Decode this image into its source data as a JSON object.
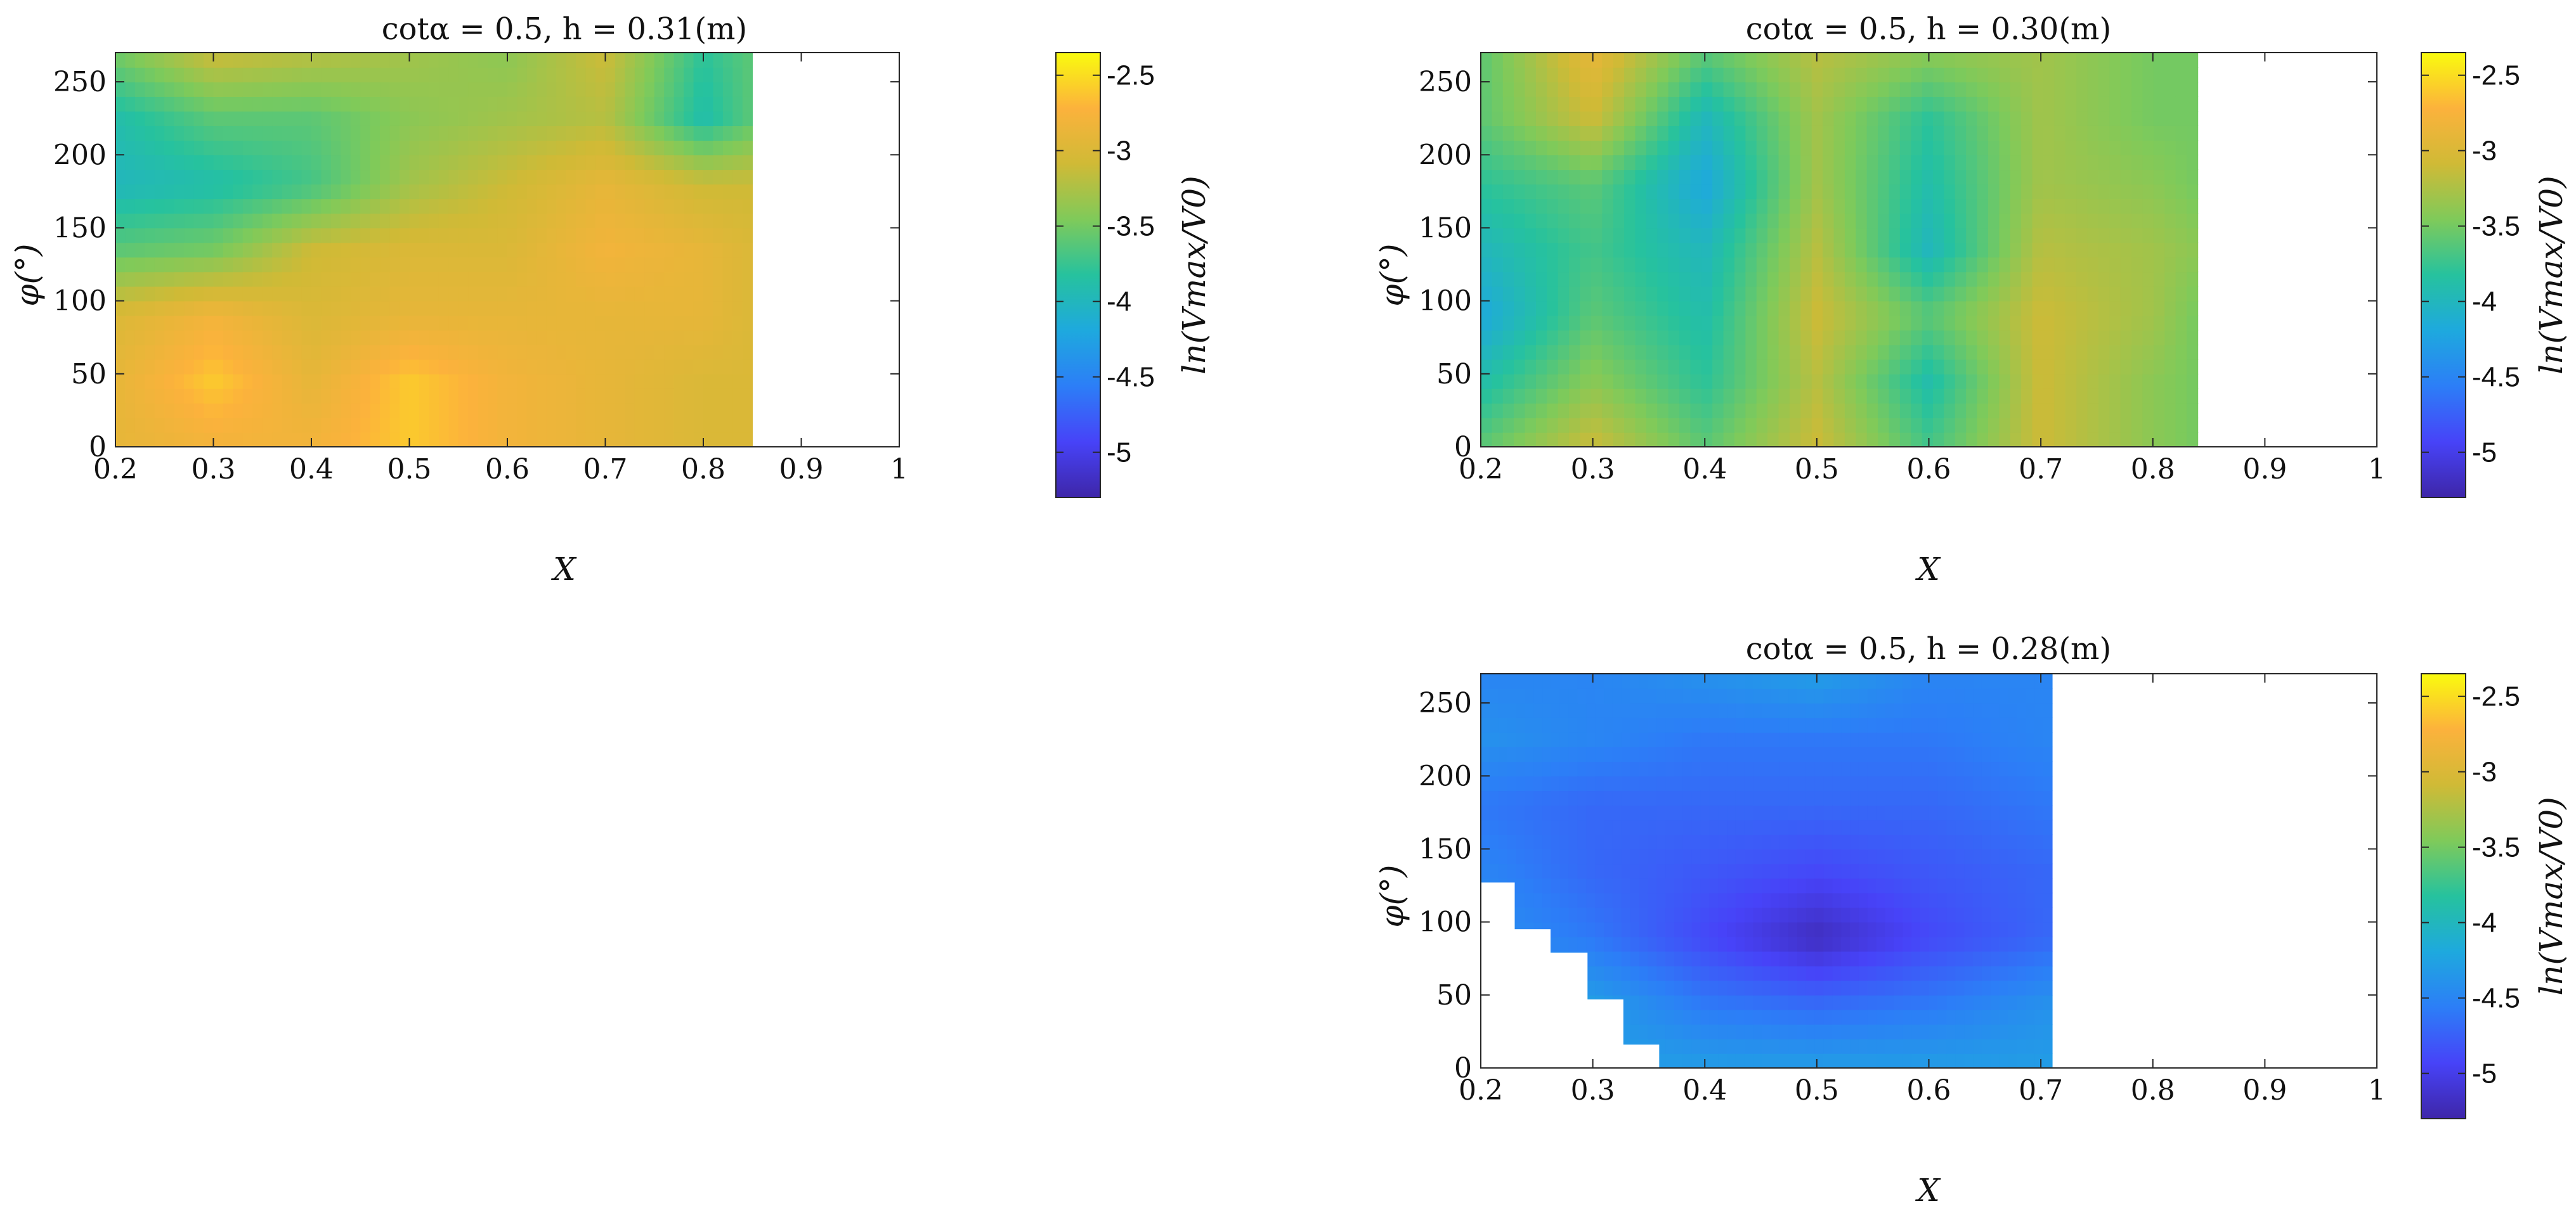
{
  "chart_data": [
    {
      "type": "heatmap",
      "title": "cotα = 0.5, h = 0.31(m)",
      "xlabel": "X",
      "ylabel": "φ(°)",
      "colorbar_label": "ln(Vmax/V0)",
      "xlim": [
        0.2,
        1
      ],
      "ylim": [
        0,
        270
      ],
      "xticks": [
        "0.2",
        "0.3",
        "0.4",
        "0.5",
        "0.6",
        "0.7",
        "0.8",
        "0.9",
        "1"
      ],
      "yticks": [
        "0",
        "50",
        "100",
        "150",
        "200",
        "250"
      ],
      "clim": [
        -5.3,
        -2.35
      ],
      "colorbar_ticks": [
        "-2.5",
        "-3",
        "-3.5",
        "-4",
        "-4.5",
        "-5"
      ],
      "data_extent_x": [
        0.2,
        0.85
      ],
      "colormap": [
        "#3e26a8",
        "#4743f8",
        "#2c7ef7",
        "#1ea9de",
        "#26c29e",
        "#7fca5a",
        "#d0ba36",
        "#fcb23c",
        "#f9fb0e"
      ],
      "grid_x": [
        0.2,
        0.3,
        0.4,
        0.5,
        0.6,
        0.7,
        0.8,
        0.85
      ],
      "grid_y": [
        0,
        45,
        90,
        135,
        180,
        225,
        270
      ],
      "grid_values": [
        [
          -2.9,
          -2.8,
          -2.8,
          -2.6,
          -2.8,
          -2.9,
          -3.0,
          -3.0
        ],
        [
          -2.9,
          -2.6,
          -2.9,
          -2.6,
          -2.8,
          -2.9,
          -3.0,
          -3.0
        ],
        [
          -3.0,
          -2.8,
          -3.0,
          -2.9,
          -2.9,
          -2.9,
          -2.9,
          -3.0
        ],
        [
          -3.6,
          -3.5,
          -3.1,
          -3.0,
          -3.0,
          -2.8,
          -2.9,
          -3.0
        ],
        [
          -4.0,
          -3.9,
          -3.7,
          -3.3,
          -3.1,
          -2.9,
          -3.1,
          -3.1
        ],
        [
          -3.9,
          -3.6,
          -3.6,
          -3.4,
          -3.3,
          -3.2,
          -3.9,
          -3.6
        ],
        [
          -3.5,
          -3.1,
          -3.2,
          -3.3,
          -3.4,
          -3.1,
          -3.8,
          -3.6
        ]
      ]
    },
    {
      "type": "heatmap",
      "title": "cotα = 0.5, h = 0.30(m)",
      "xlabel": "X",
      "ylabel": "φ(°)",
      "colorbar_label": "ln(Vmax/V0)",
      "xlim": [
        0.2,
        1
      ],
      "ylim": [
        0,
        270
      ],
      "xticks": [
        "0.2",
        "0.3",
        "0.4",
        "0.5",
        "0.6",
        "0.7",
        "0.8",
        "0.9",
        "1"
      ],
      "yticks": [
        "0",
        "50",
        "100",
        "150",
        "200",
        "250"
      ],
      "clim": [
        -5.3,
        -2.35
      ],
      "colorbar_ticks": [
        "-2.5",
        "-3",
        "-3.5",
        "-4",
        "-4.5",
        "-5"
      ],
      "data_extent_x": [
        0.2,
        0.84
      ],
      "colormap": [
        "#3e26a8",
        "#4743f8",
        "#2c7ef7",
        "#1ea9de",
        "#26c29e",
        "#7fca5a",
        "#d0ba36",
        "#fcb23c",
        "#f9fb0e"
      ],
      "grid_x": [
        0.2,
        0.3,
        0.4,
        0.5,
        0.6,
        0.7,
        0.8,
        0.84
      ],
      "grid_y": [
        0,
        45,
        90,
        135,
        180,
        225,
        270
      ],
      "grid_values": [
        [
          -3.6,
          -3.1,
          -3.6,
          -3.1,
          -3.7,
          -3.1,
          -3.4,
          -3.5
        ],
        [
          -3.9,
          -3.4,
          -3.8,
          -3.2,
          -3.9,
          -3.1,
          -3.4,
          -3.5
        ],
        [
          -4.2,
          -3.6,
          -3.9,
          -3.1,
          -3.6,
          -3.1,
          -3.3,
          -3.5
        ],
        [
          -4.0,
          -3.7,
          -4.0,
          -3.2,
          -4.0,
          -3.2,
          -3.3,
          -3.4
        ],
        [
          -3.8,
          -3.6,
          -4.2,
          -3.3,
          -3.9,
          -3.3,
          -3.4,
          -3.5
        ],
        [
          -3.6,
          -3.1,
          -4.0,
          -3.3,
          -3.8,
          -3.3,
          -3.5,
          -3.5
        ],
        [
          -3.6,
          -2.9,
          -3.6,
          -3.2,
          -3.4,
          -3.3,
          -3.5,
          -3.5
        ]
      ]
    },
    {
      "type": "heatmap",
      "title": "cotα = 0.5, h = 0.28(m)",
      "xlabel": "X",
      "ylabel": "φ(°)",
      "colorbar_label": "ln(Vmax/V0)",
      "xlim": [
        0.2,
        1
      ],
      "ylim": [
        0,
        270
      ],
      "xticks": [
        "0.2",
        "0.3",
        "0.4",
        "0.5",
        "0.6",
        "0.7",
        "0.8",
        "0.9",
        "1"
      ],
      "yticks": [
        "0",
        "50",
        "100",
        "150",
        "200",
        "250"
      ],
      "clim": [
        -5.3,
        -2.35
      ],
      "colorbar_ticks": [
        "-2.5",
        "-3",
        "-3.5",
        "-4",
        "-4.5",
        "-5"
      ],
      "data_extent_x": [
        0.2,
        0.71
      ],
      "colormap": [
        "#3e26a8",
        "#4743f8",
        "#2c7ef7",
        "#1ea9de",
        "#26c29e",
        "#7fca5a",
        "#d0ba36",
        "#fcb23c",
        "#f9fb0e"
      ],
      "grid_x": [
        0.2,
        0.3,
        0.4,
        0.5,
        0.6,
        0.71
      ],
      "grid_y": [
        0,
        45,
        90,
        135,
        180,
        225,
        270
      ],
      "grid_values": [
        [
          -4.3,
          -4.3,
          -4.3,
          -4.3,
          -4.3,
          -4.3
        ],
        [
          -4.3,
          -4.3,
          -4.6,
          -4.7,
          -4.6,
          -4.4
        ],
        [
          -4.4,
          -4.6,
          -4.9,
          -5.2,
          -4.9,
          -4.7
        ],
        [
          -4.5,
          -4.7,
          -4.8,
          -4.9,
          -4.8,
          -4.7
        ],
        [
          -4.6,
          -4.7,
          -4.7,
          -4.7,
          -4.7,
          -4.6
        ],
        [
          -4.4,
          -4.5,
          -4.6,
          -4.6,
          -4.6,
          -4.5
        ],
        [
          -4.5,
          -4.5,
          -4.4,
          -4.3,
          -4.5,
          -4.5
        ]
      ],
      "missing_steps": [
        {
          "x": [
            0.2,
            0.23
          ],
          "y": [
            0,
            127
          ]
        },
        {
          "x": [
            0.23,
            0.262
          ],
          "y": [
            0,
            95
          ]
        },
        {
          "x": [
            0.262,
            0.295
          ],
          "y": [
            0,
            79
          ]
        },
        {
          "x": [
            0.295,
            0.327
          ],
          "y": [
            0,
            47
          ]
        },
        {
          "x": [
            0.327,
            0.359
          ],
          "y": [
            0,
            16
          ]
        }
      ]
    }
  ]
}
